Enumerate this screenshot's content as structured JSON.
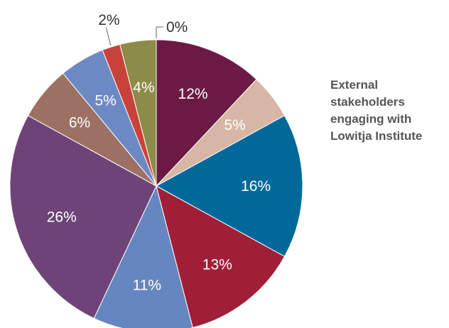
{
  "chart_data": {
    "type": "pie",
    "title_lines": [
      "External",
      "stakeholders",
      "engaging with",
      "Lowitja Institute"
    ],
    "slices": [
      {
        "label": "12%",
        "value": 12,
        "color": "#6b1a44"
      },
      {
        "label": "5%",
        "value": 5,
        "color": "#d7b6a5"
      },
      {
        "label": "16%",
        "value": 16,
        "color": "#00699a"
      },
      {
        "label": "13%",
        "value": 13,
        "color": "#a11f36"
      },
      {
        "label": "11%",
        "value": 11,
        "color": "#6686bf"
      },
      {
        "label": "26%",
        "value": 26,
        "color": "#6e4478"
      },
      {
        "label": "6%",
        "value": 6,
        "color": "#9c7164"
      },
      {
        "label": "5%",
        "value": 5,
        "color": "#6d89c4"
      },
      {
        "label": "2%",
        "value": 2,
        "color": "#c9423a"
      },
      {
        "label": "4%",
        "value": 4,
        "color": "#8c8c4a"
      },
      {
        "label": "0%",
        "value": 0,
        "color": "#f2c94c"
      }
    ]
  }
}
